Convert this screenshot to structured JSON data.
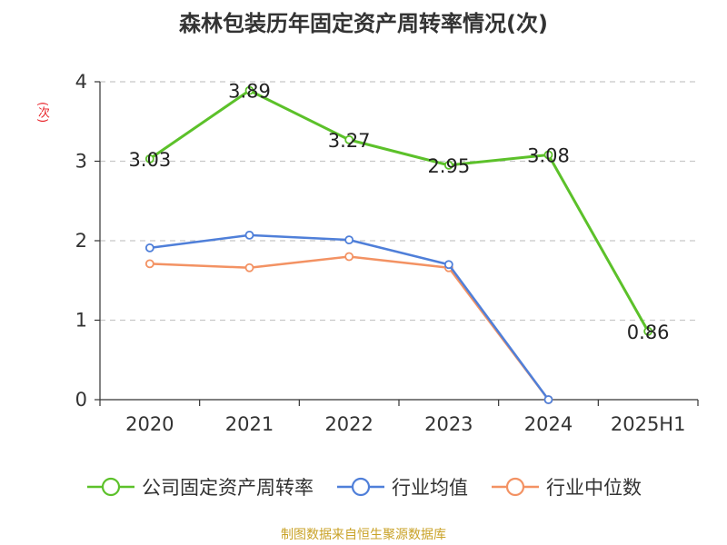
{
  "title": "森林包装历年固定资产周转率情况(次)",
  "source": "制图数据来自恒生聚源数据库",
  "chart_data": {
    "type": "line",
    "title": "森林包装历年固定资产周转率情况(次)",
    "xlabel": "",
    "ylabel": "(次)",
    "categories": [
      "2020",
      "2021",
      "2022",
      "2023",
      "2024",
      "2025H1"
    ],
    "ylim": [
      0,
      4
    ],
    "yticks": [
      0,
      1,
      2,
      3,
      4
    ],
    "grid": true,
    "legend_position": "bottom",
    "series": [
      {
        "name": "公司固定资产周转率",
        "color": "#5cc12a",
        "values": [
          3.03,
          3.89,
          3.27,
          2.95,
          3.08,
          0.86
        ],
        "labels": [
          "3.03",
          "3.89",
          "3.27",
          "2.95",
          "3.08",
          "0.86"
        ]
      },
      {
        "name": "行业均值",
        "color": "#4f7fd9",
        "values": [
          1.91,
          2.07,
          2.01,
          1.7,
          0,
          null
        ]
      },
      {
        "name": "行业中位数",
        "color": "#f39263",
        "values": [
          1.71,
          1.66,
          1.8,
          1.66,
          0,
          null
        ]
      }
    ]
  }
}
